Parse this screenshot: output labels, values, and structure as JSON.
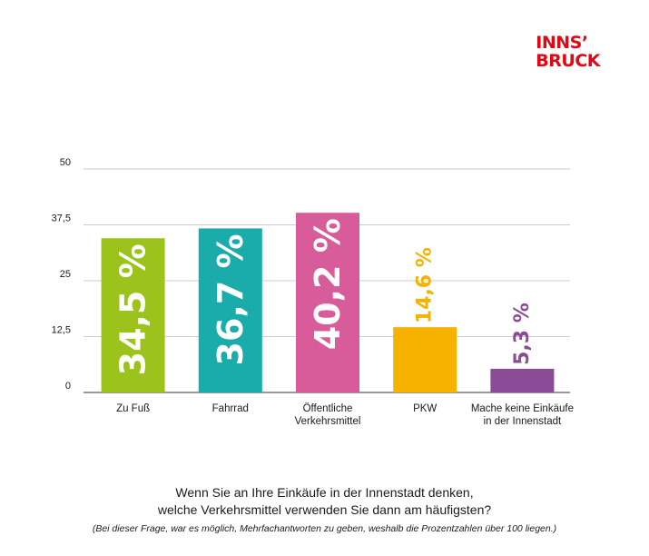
{
  "logo": {
    "line1": "INNS’",
    "line2": "BRUCK"
  },
  "question": {
    "line1": "Wenn Sie an Ihre Einkäufe in der Innenstadt denken,",
    "line2": "welche Verkehrsmittel verwenden Sie dann am häufigsten?"
  },
  "note": "(Bei dieser Frage, war es möglich, Mehrfachantworten zu geben, weshalb die Prozentzahlen über 100 liegen.)",
  "chart_data": {
    "type": "bar",
    "categories": [
      [
        "Zu Fuß"
      ],
      [
        "Fahrrad"
      ],
      [
        "Öffentliche",
        "Verkehrsmittel"
      ],
      [
        "PKW"
      ],
      [
        "Mache keine Einkäufe",
        "in der Innenstadt"
      ]
    ],
    "values": [
      34.5,
      36.7,
      40.2,
      14.6,
      5.3
    ],
    "value_labels": [
      "34,5 %",
      "36,7 %",
      "40,2 %",
      "14,6 %",
      "5,3 %"
    ],
    "colors": [
      "#9bc31c",
      "#1aacab",
      "#d95c9a",
      "#f6b200",
      "#8c4b96"
    ],
    "label_positions": [
      "inside",
      "inside",
      "inside",
      "above",
      "above"
    ],
    "yticks": [
      0,
      12.5,
      25,
      37.5,
      50
    ],
    "ytick_labels": [
      "0",
      "12,5",
      "25",
      "37,5",
      "50"
    ],
    "ylim": [
      0,
      50
    ],
    "grid": true,
    "title": "",
    "xlabel": "",
    "ylabel": ""
  }
}
